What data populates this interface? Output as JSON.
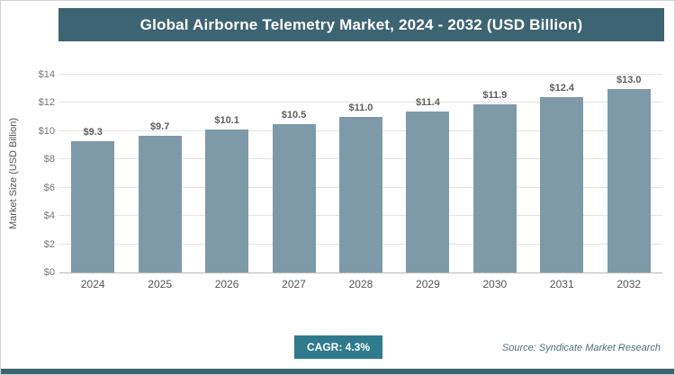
{
  "header": {
    "title": "Global Airborne Telemetry Market, 2024 - 2032 (USD Billion)"
  },
  "chart_data": {
    "type": "bar",
    "title": "Global Airborne Telemetry Market, 2024 - 2032 (USD Billion)",
    "categories": [
      "2024",
      "2025",
      "2026",
      "2027",
      "2028",
      "2029",
      "2030",
      "2031",
      "2032"
    ],
    "values": [
      9.3,
      9.7,
      10.1,
      10.5,
      11.0,
      11.4,
      11.9,
      12.4,
      13.0
    ],
    "labels": [
      "$9.3",
      "$9.7",
      "$10.1",
      "$10.5",
      "$11.0",
      "$11.4",
      "$11.9",
      "$12.4",
      "$13.0"
    ],
    "xlabel": "",
    "ylabel": "Market Size (USD Billion)",
    "ylim": [
      0,
      14
    ],
    "ytick_step": 2,
    "ytick_labels": [
      "$0",
      "$2",
      "$4",
      "$6",
      "$8",
      "$10",
      "$12",
      "$14"
    ],
    "grid": true,
    "legend": "none",
    "bar_color": "#7e9aa9"
  },
  "footer": {
    "cagr_label": "CAGR: 4.3%",
    "source": "Source: Syndicate Market Research"
  },
  "colors": {
    "header_bg": "#3d6473",
    "header_text": "#ffffff",
    "bar": "#7e9aa9",
    "cagr_bg": "#2f7a8c",
    "bottom_bar": "#3d6473",
    "gridline": "#e4e4e4"
  }
}
